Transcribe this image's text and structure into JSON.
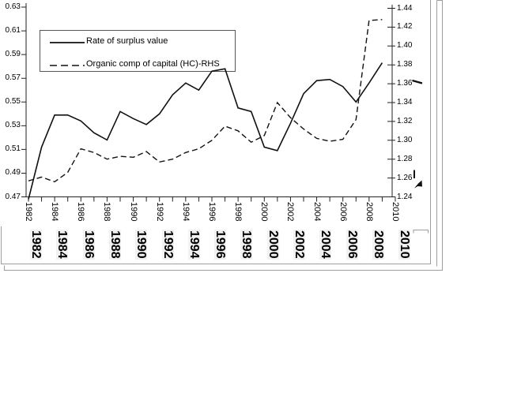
{
  "chart_data": {
    "type": "line",
    "title": "",
    "x": [
      1982,
      1983,
      1984,
      1985,
      1986,
      1987,
      1988,
      1989,
      1990,
      1991,
      1992,
      1993,
      1994,
      1995,
      1996,
      1997,
      1998,
      1999,
      2000,
      2001,
      2002,
      2003,
      2004,
      2005,
      2006,
      2007,
      2008,
      2009
    ],
    "x_tick_labels": [
      "1982",
      "1984",
      "1986",
      "1988",
      "1990",
      "1992",
      "1994",
      "1996",
      "1998",
      "2000",
      "2002",
      "2004",
      "2006",
      "2008",
      "2010"
    ],
    "series": [
      {
        "name": "Rate of surplus value",
        "axis": "left",
        "line_style": "solid",
        "color": "#111111",
        "values": [
          0.468,
          0.512,
          0.539,
          0.539,
          0.534,
          0.524,
          0.518,
          0.542,
          0.536,
          0.531,
          0.54,
          0.556,
          0.566,
          0.56,
          0.576,
          0.578,
          0.545,
          0.542,
          0.512,
          0.509,
          0.532,
          0.557,
          0.568,
          0.569,
          0.563,
          0.55,
          0.566,
          0.583
        ]
      },
      {
        "name": "Organic comp of capital (HC)-RHS",
        "axis": "right",
        "line_style": "dashed",
        "color": "#111111",
        "values": [
          1.257,
          1.261,
          1.256,
          1.266,
          1.291,
          1.287,
          1.28,
          1.283,
          1.282,
          1.288,
          1.277,
          1.28,
          1.287,
          1.291,
          1.3,
          1.315,
          1.31,
          1.298,
          1.305,
          1.34,
          1.324,
          1.312,
          1.302,
          1.299,
          1.301,
          1.322,
          1.427,
          1.428
        ]
      }
    ],
    "left_axis": {
      "min": 0.47,
      "max": 0.63,
      "step": 0.02,
      "tick_labels": [
        "0.63",
        "0.61",
        "0.59",
        "0.57",
        "0.55",
        "0.53",
        "0.51",
        "0.49",
        "0.47"
      ]
    },
    "right_axis": {
      "min": 1.24,
      "max": 1.44,
      "step": 0.02,
      "tick_labels": [
        "1.44",
        "1.42",
        "1.40",
        "1.38",
        "1.36",
        "1.34",
        "1.32",
        "1.30",
        "1.28",
        "1.26",
        "1.24"
      ]
    },
    "legend": {
      "position": "top-left-inside",
      "entries": [
        "Rate of surplus value",
        "Organic comp of capital (HC)-RHS"
      ]
    },
    "grid": false,
    "xlabel": "",
    "ylabel": ""
  },
  "background_chart": {
    "x_labels_bold": [
      "1982",
      "1984",
      "1986",
      "1988",
      "1990",
      "1992",
      "1994",
      "1996",
      "1998",
      "2000",
      "2002",
      "2004",
      "2006",
      "2008",
      "2010"
    ]
  }
}
